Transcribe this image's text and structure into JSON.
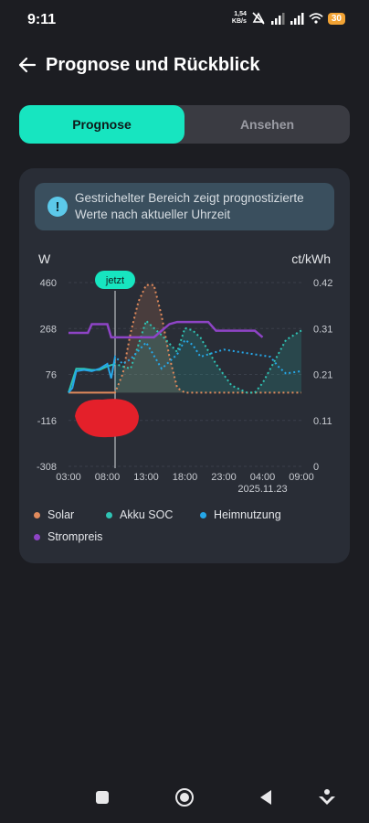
{
  "status_bar": {
    "time": "9:11",
    "net_speed_value": "1,54",
    "net_speed_unit": "KB/s",
    "battery": "30",
    "icons": [
      "mute-icon",
      "signal-icon",
      "signal-icon",
      "wifi-icon",
      "battery-icon"
    ]
  },
  "header": {
    "title": "Prognose und Rückblick",
    "back_icon": "arrow-left-icon"
  },
  "tabs": [
    {
      "label": "Prognose",
      "active": true
    },
    {
      "label": "Ansehen",
      "active": false
    }
  ],
  "info_banner": {
    "icon": "info-icon",
    "text": "Gestrichelter Bereich zeigt prognostizierte Werte nach aktueller Uhrzeit"
  },
  "colors": {
    "accent": "#17e5c0",
    "solar": "#e08a5c",
    "akku_soc": "#2fc3b4",
    "heimnutzung": "#25a7e8",
    "strompreis": "#8e44c6"
  },
  "chart_data": {
    "type": "line",
    "ylabel_left": "W",
    "ylabel_right": "ct/kWh",
    "y_left_ticks": [
      "460",
      "268",
      "76",
      "-116",
      "-308"
    ],
    "y_right_ticks": [
      "0.42",
      "0.31",
      "0.21",
      "0.11",
      "0"
    ],
    "ylim_left": [
      -308,
      460
    ],
    "ylim_right": [
      0,
      0.42
    ],
    "x_ticks": [
      "03:00",
      "08:00",
      "13:00",
      "18:00",
      "23:00",
      "04:00",
      "09:00"
    ],
    "x_date_label": "2025.11.23",
    "x_range": [
      0,
      30
    ],
    "now_marker": {
      "label": "jetzt",
      "x": 6
    },
    "series": [
      {
        "name": "Solar",
        "axis": "left",
        "x": [
          0,
          5,
          6,
          7,
          8,
          9,
          10,
          11,
          12,
          13,
          14,
          15,
          16,
          17,
          19,
          30
        ],
        "y": [
          0,
          0,
          0,
          80,
          250,
          380,
          450,
          450,
          320,
          150,
          20,
          0,
          0,
          0,
          0,
          0
        ]
      },
      {
        "name": "Akku SOC",
        "axis": "left",
        "x": [
          0,
          1,
          2,
          3,
          4,
          5,
          6,
          8,
          10,
          12,
          14,
          15,
          16,
          17,
          19,
          21,
          23,
          24,
          25,
          27,
          28,
          30
        ],
        "y": [
          0,
          100,
          100,
          95,
          95,
          110,
          120,
          100,
          300,
          240,
          170,
          270,
          260,
          230,
          120,
          30,
          0,
          0,
          40,
          160,
          220,
          260
        ]
      },
      {
        "name": "Heimnutzung",
        "axis": "left",
        "x": [
          0,
          0.5,
          1,
          2,
          3,
          4,
          5,
          5.5,
          6,
          7,
          8,
          10,
          12,
          14,
          15,
          16,
          17,
          19,
          20,
          22,
          24,
          26,
          27,
          28,
          30
        ],
        "y": [
          0,
          20,
          90,
          95,
          90,
          100,
          120,
          60,
          150,
          120,
          140,
          210,
          100,
          160,
          220,
          200,
          150,
          170,
          180,
          170,
          160,
          150,
          110,
          80,
          90
        ]
      },
      {
        "name": "Strompreis",
        "axis": "right",
        "x": [
          0,
          2.5,
          3,
          4,
          5,
          5.5,
          6,
          11,
          13,
          14,
          18,
          19,
          24,
          25
        ],
        "y": [
          0.305,
          0.305,
          0.325,
          0.325,
          0.325,
          0.295,
          0.295,
          0.295,
          0.325,
          0.33,
          0.33,
          0.31,
          0.31,
          0.295
        ]
      }
    ]
  },
  "legend": [
    {
      "label": "Solar",
      "color": "#e08a5c"
    },
    {
      "label": "Akku SOC",
      "color": "#2fc3b4"
    },
    {
      "label": "Heimnutzung",
      "color": "#25a7e8"
    },
    {
      "label": "Strompreis",
      "color": "#8e44c6"
    }
  ],
  "nav_bar": {
    "buttons": [
      "recents-button",
      "home-button",
      "back-button",
      "assist-button"
    ]
  }
}
